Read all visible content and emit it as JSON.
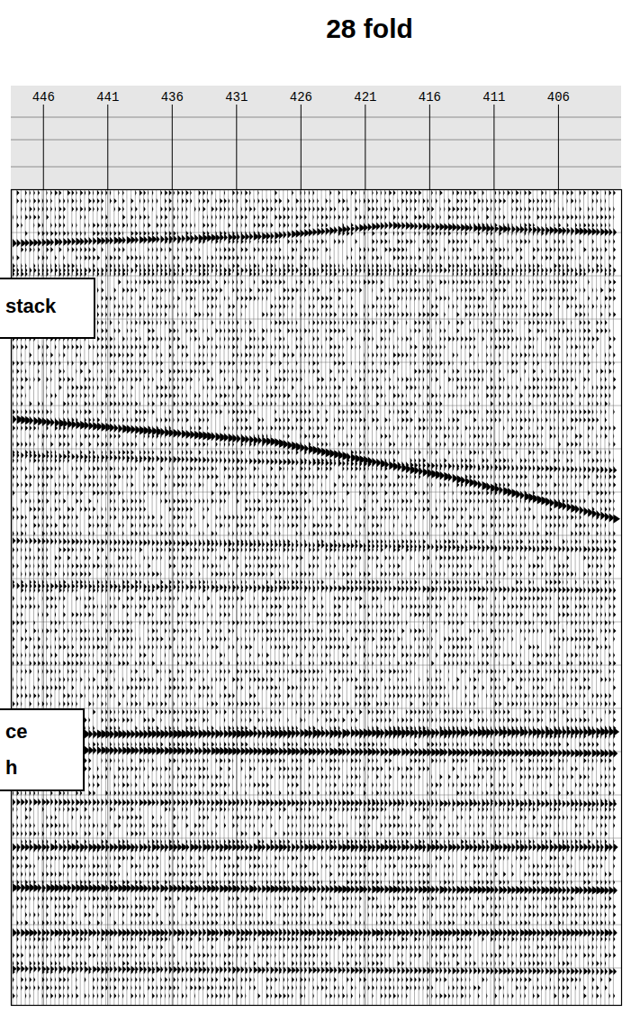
{
  "chart_data": {
    "type": "seismic",
    "title": "28 fold",
    "xlim": [
      448.5,
      401.1
    ],
    "xticks": [
      446,
      441,
      436,
      431,
      426,
      421,
      416,
      411,
      406
    ],
    "grid": true,
    "tick_labels": "x",
    "annotations": [
      [
        "stack"
      ],
      [
        "ce",
        "h"
      ]
    ]
  }
}
